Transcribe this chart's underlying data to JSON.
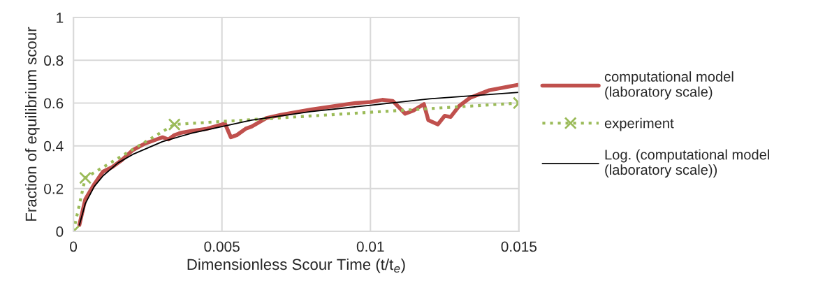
{
  "chart_data": {
    "type": "line",
    "xlabel": "Dimensionless Scour Time (t/t$_{e}$)",
    "ylabel": "Fraction of equilibrium scour",
    "xlim": [
      0,
      0.015
    ],
    "xticks": [
      0,
      0.005,
      0.01,
      0.015
    ],
    "ylim": [
      0,
      1
    ],
    "yticks": [
      0,
      0.2,
      0.4,
      0.6,
      0.8,
      1
    ],
    "grid": true,
    "legend": "right",
    "series": [
      {
        "name": "computational model\n(laboratory scale)",
        "color": "#c0504d",
        "line_style": "solid",
        "marker": "none",
        "x": [
          0.0002,
          0.0004,
          0.0007,
          0.001,
          0.0013,
          0.0016,
          0.002,
          0.0024,
          0.0028,
          0.003,
          0.0032,
          0.0034,
          0.0036,
          0.004,
          0.0045,
          0.005,
          0.0051,
          0.0053,
          0.0055,
          0.0058,
          0.006,
          0.0065,
          0.007,
          0.008,
          0.009,
          0.0095,
          0.01,
          0.0104,
          0.01075,
          0.01117,
          0.01145,
          0.0118,
          0.01195,
          0.01227,
          0.0125,
          0.0127,
          0.01298,
          0.01336,
          0.014,
          0.01477,
          0.015
        ],
        "values": [
          0.03,
          0.15,
          0.22,
          0.28,
          0.3,
          0.33,
          0.38,
          0.41,
          0.43,
          0.44,
          0.43,
          0.45,
          0.46,
          0.47,
          0.48,
          0.5,
          0.505,
          0.44,
          0.45,
          0.48,
          0.49,
          0.53,
          0.545,
          0.57,
          0.59,
          0.6,
          0.605,
          0.615,
          0.61,
          0.55,
          0.565,
          0.595,
          0.52,
          0.5,
          0.54,
          0.535,
          0.585,
          0.625,
          0.66,
          0.68,
          0.686
        ]
      },
      {
        "name": "experiment",
        "color": "#9bbb59",
        "line_style": "dotted",
        "marker": "cross",
        "x": [
          0,
          0.0004,
          0.0034,
          0.015
        ],
        "values": [
          0,
          0.25,
          0.5,
          0.6
        ]
      },
      {
        "name": "Log. (computational model\n(laboratory scale))",
        "color": "#000000",
        "line_style": "solid",
        "marker": "none",
        "x": [
          0.0002,
          0.0004,
          0.0007,
          0.001,
          0.0015,
          0.002,
          0.003,
          0.004,
          0.005,
          0.006,
          0.008,
          0.01,
          0.012,
          0.015
        ],
        "values": [
          0.03,
          0.13,
          0.21,
          0.26,
          0.32,
          0.36,
          0.42,
          0.46,
          0.49,
          0.52,
          0.56,
          0.59,
          0.62,
          0.65
        ]
      }
    ]
  }
}
